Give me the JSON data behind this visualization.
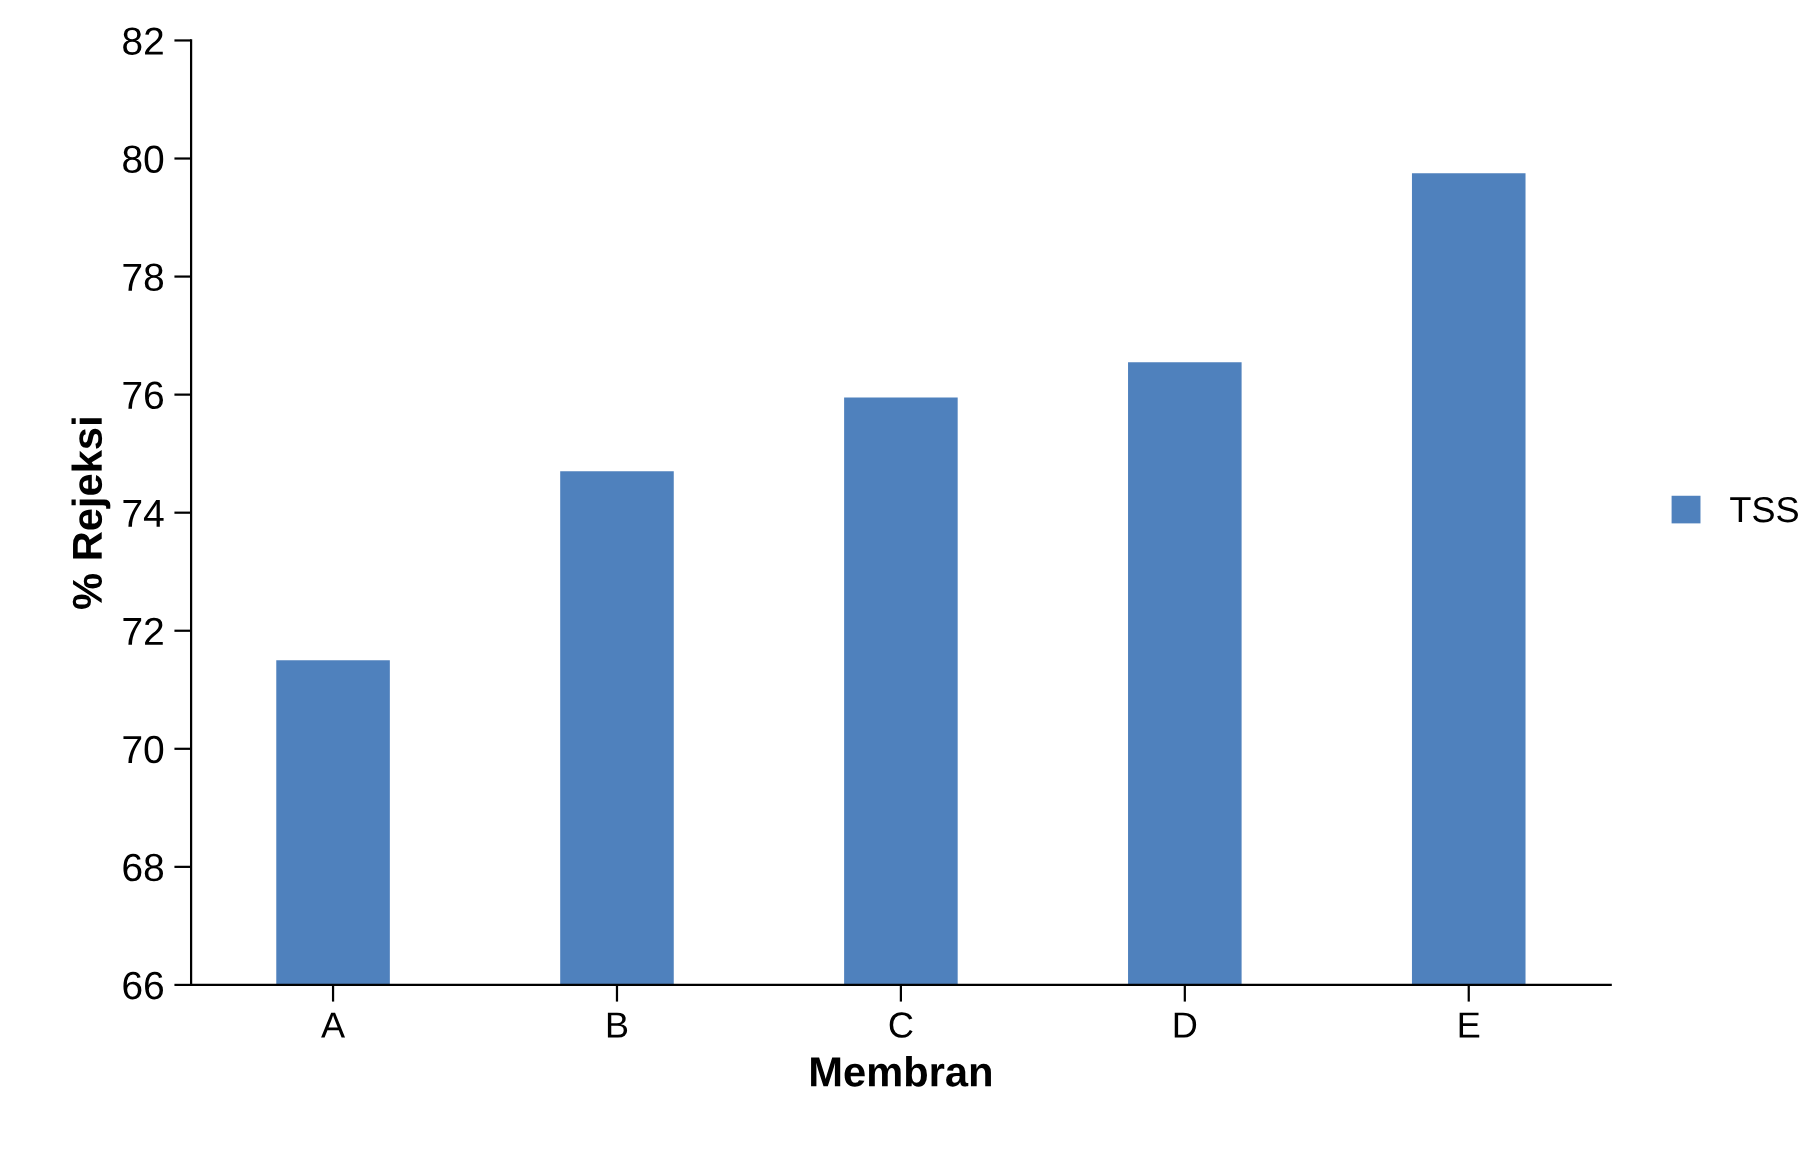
{
  "chart_data": {
    "type": "bar",
    "xlabel": "Membran",
    "ylabel": "% Rejeksi",
    "categories": [
      "A",
      "B",
      "C",
      "D",
      "E"
    ],
    "series": [
      {
        "name": "TSS",
        "color": "#4f81bd",
        "values": [
          71.5,
          74.7,
          75.95,
          76.55,
          79.75
        ]
      }
    ],
    "ylim": [
      66,
      82
    ],
    "yticks": [
      66,
      68,
      70,
      72,
      74,
      76,
      78,
      80,
      82
    ],
    "grid": false,
    "legend": "right"
  }
}
